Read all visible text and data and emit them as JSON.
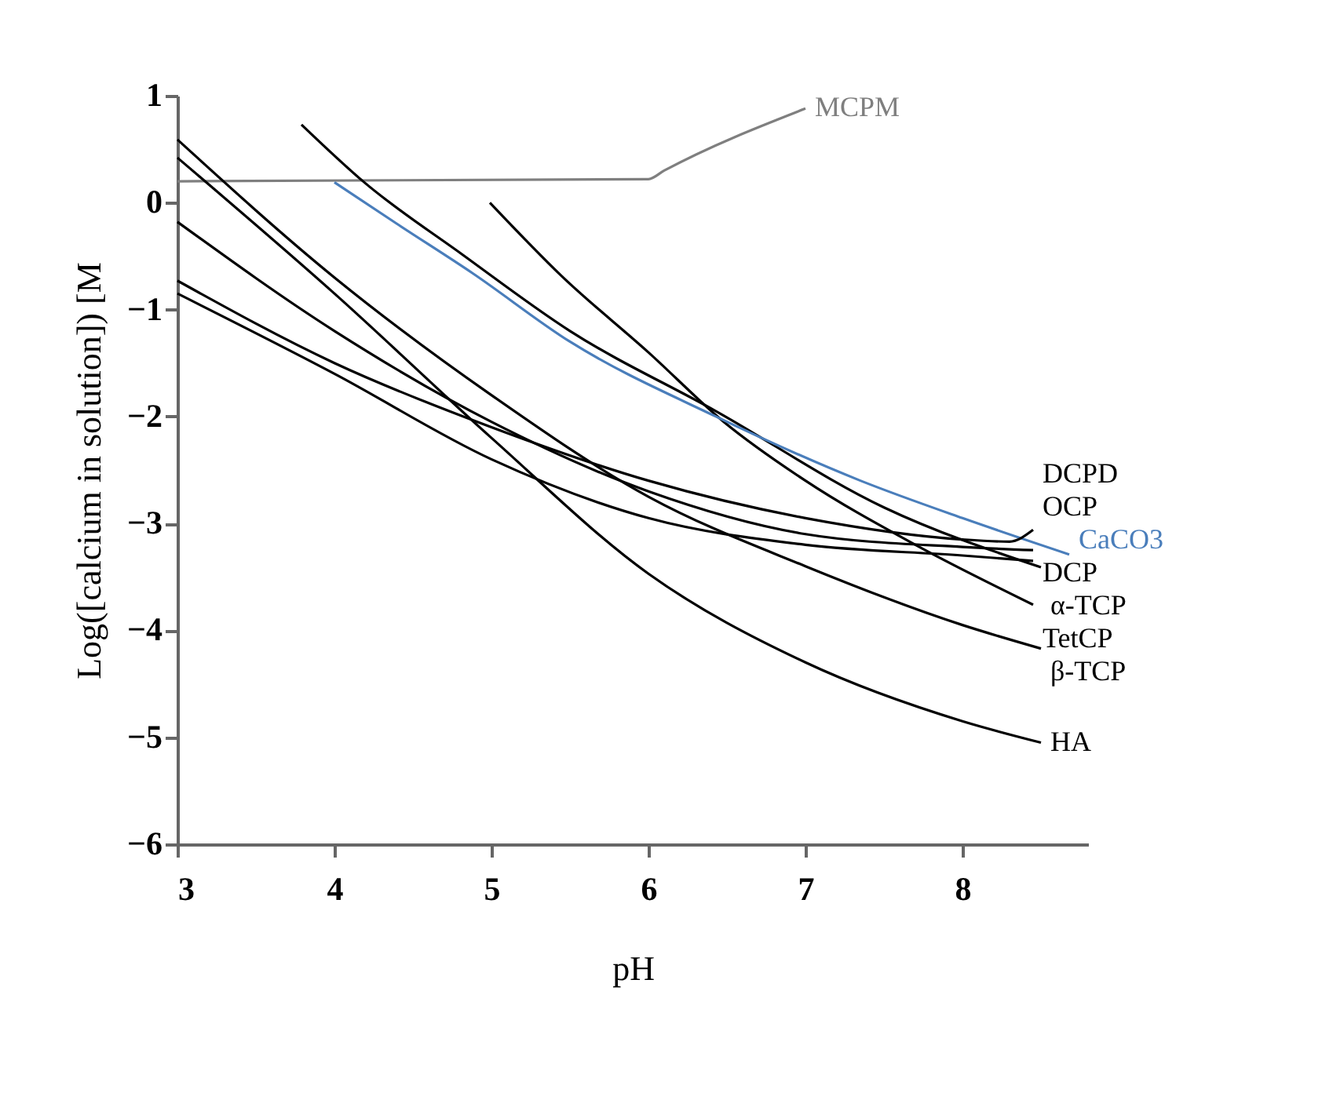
{
  "chart_data": {
    "type": "line",
    "xlabel": "pH",
    "ylabel": "Log([calcium in solution]) [M",
    "xlim": [
      3,
      8.8
    ],
    "ylim": [
      -6,
      1
    ],
    "xticks": [
      3,
      4,
      5,
      6,
      7,
      8
    ],
    "yticks": [
      -6,
      -5,
      -4,
      -3,
      -2,
      -1,
      0,
      1
    ],
    "grid": false,
    "marker": "none",
    "line_style": "solid",
    "series": [
      {
        "name": "MCPM",
        "color": "#7f7f7f",
        "x": [
          3,
          6,
          6.1,
          7
        ],
        "values": [
          0.2,
          0.22,
          0.3,
          0.88
        ]
      },
      {
        "name": "α-TCP",
        "color": "#000000",
        "x": [
          3.79,
          4.19,
          4.81,
          5.5,
          6.43,
          7.5,
          8.5
        ],
        "values": [
          0.73,
          0.19,
          -0.48,
          -1.2,
          -1.95,
          -2.85,
          -3.41
        ]
      },
      {
        "name": "TetCP",
        "color": "#000000",
        "x": [
          4.99,
          5.45,
          6,
          6.48,
          7,
          7.7,
          8.45
        ],
        "values": [
          0,
          -0.69,
          -1.4,
          -2.05,
          -2.6,
          -3.2,
          -3.76
        ]
      },
      {
        "name": "CaCO3",
        "color": "#4a7ebb",
        "x": [
          4,
          4.4,
          4.88,
          5.5,
          6.43,
          7.35,
          8,
          8.68
        ],
        "values": [
          0.19,
          -0.2,
          -0.66,
          -1.3,
          -2,
          -2.6,
          -2.95,
          -3.29
        ]
      },
      {
        "name": "HA",
        "color": "#000000",
        "x": [
          3,
          4,
          5,
          6,
          7,
          8,
          8.5
        ],
        "values": [
          0.42,
          -0.85,
          -2.2,
          -3.47,
          -4.3,
          -4.85,
          -5.05
        ]
      },
      {
        "name": "β-TCP",
        "color": "#000000",
        "x": [
          3,
          4,
          5,
          6,
          7,
          8,
          8.5
        ],
        "values": [
          0.59,
          -0.7,
          -1.8,
          -2.75,
          -3.4,
          -3.95,
          -4.17
        ]
      },
      {
        "name": "OCP",
        "color": "#000000",
        "x": [
          3,
          4,
          5,
          6,
          7,
          8,
          8.45
        ],
        "values": [
          -0.18,
          -1.2,
          -2.05,
          -2.7,
          -3.1,
          -3.22,
          -3.25
        ]
      },
      {
        "name": "DCPD",
        "color": "#000000",
        "x": [
          3,
          4,
          5,
          6,
          7,
          8,
          8.3,
          8.45
        ],
        "values": [
          -0.73,
          -1.5,
          -2.1,
          -2.6,
          -2.95,
          -3.15,
          -3.17,
          -3.06
        ]
      },
      {
        "name": "DCP",
        "color": "#000000",
        "x": [
          3,
          4,
          5,
          6,
          7,
          8,
          8.45
        ],
        "values": [
          -0.85,
          -1.6,
          -2.4,
          -2.95,
          -3.2,
          -3.3,
          -3.35
        ]
      }
    ]
  }
}
